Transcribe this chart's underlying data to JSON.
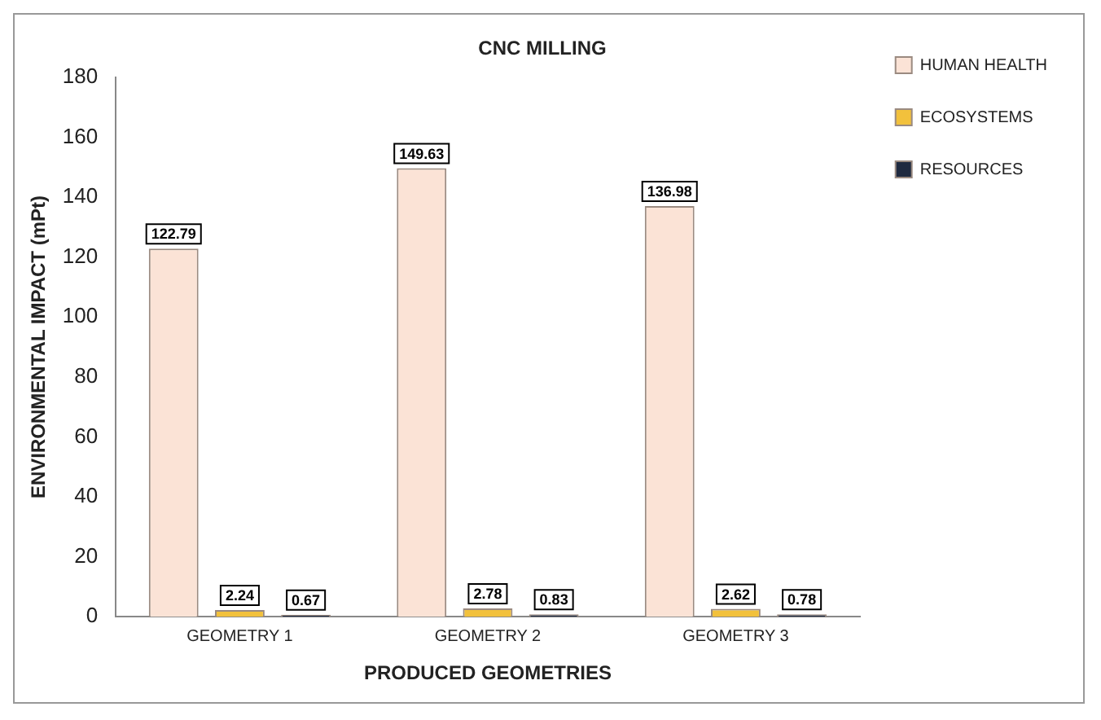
{
  "chart_data": {
    "type": "bar",
    "title": "CNC MILLING",
    "xlabel": "PRODUCED GEOMETRIES",
    "ylabel": "ENVIRONMENTAL IMPACT (mPt)",
    "categories": [
      "GEOMETRY 1",
      "GEOMETRY 2",
      "GEOMETRY 3"
    ],
    "series": [
      {
        "name": "HUMAN HEALTH",
        "color": "#fbe3d6",
        "values": [
          122.79,
          149.63,
          136.98
        ]
      },
      {
        "name": "ECOSYSTEMS",
        "color": "#f2c13c",
        "values": [
          2.24,
          2.78,
          2.62
        ]
      },
      {
        "name": "RESOURCES",
        "color": "#1f2a40",
        "values": [
          0.67,
          0.83,
          0.78
        ]
      }
    ],
    "ylim": [
      0,
      180
    ],
    "yticks": [
      0,
      20,
      40,
      60,
      80,
      100,
      120,
      140,
      160,
      180
    ],
    "grid": false,
    "legend": "top right",
    "data_labels": true
  }
}
